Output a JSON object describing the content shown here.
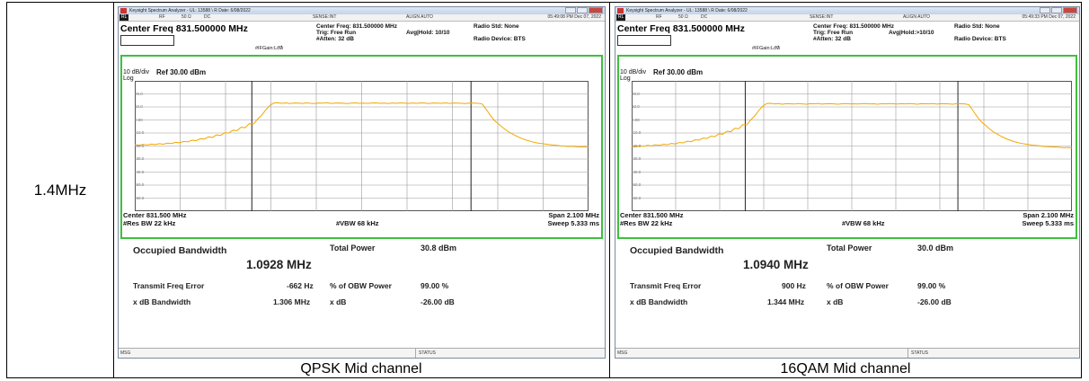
{
  "row_label": "1.4MHz",
  "panels": [
    {
      "caption": "QPSK Mid channel",
      "title": "Keysight Spectrum Analyzer - UL: 13588 \\ R Date: 6/08/2022",
      "strip": {
        "rl": "RL",
        "rf": "RF",
        "ohm": "50 Ω",
        "dc": "DC",
        "sense": "SENSE:INT",
        "align": "ALIGN AUTO",
        "time": "05:49:08 PM Dec 07, 2022"
      },
      "center_freq_main": "Center Freq 831.500000 MHz",
      "mid_lines": [
        "Center Freq: 831.500000 MHz",
        "Trig: Free Run",
        "#Atten: 32 dB"
      ],
      "avg_hold": "Avg|Hold: 10/10",
      "gain": "#IFGain:Low",
      "radio_std": "Radio Std: None",
      "radio_device": "Radio Device: BTS",
      "scale": [
        "10 dB/div",
        "Log"
      ],
      "ref_level": "Ref 30.00 dBm",
      "yticks": [
        "20.0",
        "10.0",
        "0.00",
        "-10.0",
        "-20.0",
        "-30.0",
        "-40.0",
        "-50.0",
        "-60.0"
      ],
      "center_footer": "Center 831.500 MHz",
      "res_bw": "#Res BW  22 kHz",
      "vbw": "#VBW  68 kHz",
      "span": "Span 2.100 MHz",
      "sweep": "Sweep  5.333 ms",
      "meas": {
        "occ_label": "Occupied Bandwidth",
        "obw_value": "1.0928 MHz",
        "total_power_label": "Total Power",
        "total_power_value": "30.8 dBm",
        "tfe_label": "Transmit Freq Error",
        "tfe_value": "-662 Hz",
        "pobw_label": "% of OBW Power",
        "pobw_value": "99.00 %",
        "xdb_bw_label": "x dB Bandwidth",
        "xdb_bw_value": "1.306 MHz",
        "xdb_label": "x dB",
        "xdb_value": "-26.00 dB"
      },
      "status_msg": "MSG",
      "status_label": "STATUS",
      "chart_data": {
        "type": "line",
        "ylabel": "",
        "ylim": [
          -70,
          30
        ],
        "x_span_mhz": [
          830.45,
          832.55
        ],
        "trace_color": "#f0a800",
        "trace_dbm": [
          -19,
          -19.5,
          -18.8,
          -19.2,
          -18.5,
          -18.9,
          -18.2,
          -18.6,
          -17.8,
          -18.1,
          -17.2,
          -17.5,
          -16.5,
          -16.8,
          -15.5,
          -15.9,
          -14.4,
          -14.7,
          -13.0,
          -13.4,
          -11.5,
          -11.9,
          -9.8,
          -10.0,
          -7.9,
          -8.2,
          -5.6,
          -5.9,
          -2.9,
          -3.2,
          0.5,
          3.5,
          7.5,
          11.0,
          13.0,
          13.2,
          12.8,
          13.1,
          12.6,
          13.0,
          12.9,
          12.7,
          13.1,
          12.8,
          12.6,
          13.0,
          12.9,
          13.2,
          12.7,
          12.9,
          13.0,
          12.8,
          12.6,
          12.9,
          13.1,
          12.8,
          12.9,
          12.7,
          13.0,
          13.1,
          12.8,
          12.9,
          12.6,
          13.0,
          12.8,
          13.1,
          12.9,
          12.7,
          13.0,
          12.8,
          13.1,
          12.9,
          12.6,
          13.0,
          12.9,
          12.8,
          13.1,
          12.7,
          13.0,
          12.9,
          12.8,
          12.6,
          13.0,
          12.9,
          12.8,
          12.2,
          8.0,
          3.5,
          -0.5,
          -3.0,
          -5.8,
          -8.2,
          -10.1,
          -11.8,
          -13.3,
          -14.6,
          -15.7,
          -16.6,
          -17.3,
          -17.9,
          -18.3,
          -18.8,
          -19.1,
          -19.4,
          -19.8,
          -20.0,
          -20.3,
          -20.2,
          -20.5,
          -20.8,
          -20.6,
          -21.0
        ]
      }
    },
    {
      "caption": "16QAM Mid channel",
      "title": "Keysight Spectrum Analyzer - UL: 13588 \\ R Date: 6/08/2022",
      "strip": {
        "rl": "RL",
        "rf": "RF",
        "ohm": "50 Ω",
        "dc": "DC",
        "sense": "SENSE:INT",
        "align": "ALIGN AUTO",
        "time": "05:49:33 PM Dec 07, 2022"
      },
      "center_freq_main": "Center Freq 831.500000 MHz",
      "mid_lines": [
        "Center Freq: 831.500000 MHz",
        "Trig: Free Run",
        "#Atten: 32 dB"
      ],
      "avg_hold": "Avg|Hold:>10/10",
      "gain": "#IFGain:Low",
      "radio_std": "Radio Std: None",
      "radio_device": "Radio Device: BTS",
      "scale": [
        "10 dB/div",
        "Log"
      ],
      "ref_level": "Ref 30.00 dBm",
      "yticks": [
        "20.0",
        "10.0",
        "0.00",
        "-10.0",
        "-20.0",
        "-30.0",
        "-40.0",
        "-50.0",
        "-60.0"
      ],
      "center_footer": "Center 831.500 MHz",
      "res_bw": "#Res BW  22 kHz",
      "vbw": "#VBW  68 kHz",
      "span": "Span 2.100 MHz",
      "sweep": "Sweep  5.333 ms",
      "meas": {
        "occ_label": "Occupied Bandwidth",
        "obw_value": "1.0940 MHz",
        "total_power_label": "Total Power",
        "total_power_value": "30.0 dBm",
        "tfe_label": "Transmit Freq Error",
        "tfe_value": "900 Hz",
        "pobw_label": "% of OBW Power",
        "pobw_value": "99.00 %",
        "xdb_bw_label": "x dB Bandwidth",
        "xdb_bw_value": "1.344 MHz",
        "xdb_label": "x dB",
        "xdb_value": "-26.00 dB"
      },
      "status_msg": "MSG",
      "status_label": "STATUS",
      "chart_data": {
        "type": "line",
        "ylabel": "",
        "ylim": [
          -70,
          30
        ],
        "x_span_mhz": [
          830.45,
          832.55
        ],
        "trace_color": "#f0a800",
        "trace_dbm": [
          -20,
          -20.4,
          -19.8,
          -20.2,
          -19.5,
          -19.9,
          -19.1,
          -19.5,
          -18.7,
          -19.0,
          -18.0,
          -18.4,
          -17.3,
          -17.6,
          -16.3,
          -16.7,
          -15.2,
          -15.5,
          -13.9,
          -14.2,
          -12.4,
          -12.8,
          -10.6,
          -10.9,
          -8.7,
          -9.0,
          -6.4,
          -6.7,
          -3.6,
          -3.9,
          0.0,
          3.0,
          7.0,
          10.5,
          12.5,
          12.8,
          12.3,
          12.6,
          12.1,
          12.5,
          12.4,
          12.2,
          12.6,
          12.3,
          12.1,
          12.5,
          12.4,
          12.7,
          12.2,
          12.4,
          12.5,
          12.3,
          12.1,
          12.4,
          12.6,
          12.3,
          12.4,
          12.2,
          12.5,
          12.6,
          12.3,
          12.4,
          12.1,
          12.5,
          12.3,
          12.6,
          12.4,
          12.2,
          12.5,
          12.3,
          12.6,
          12.4,
          12.1,
          12.5,
          12.4,
          12.3,
          12.6,
          12.2,
          12.5,
          12.4,
          12.3,
          12.1,
          12.5,
          12.4,
          12.3,
          11.7,
          7.5,
          3.0,
          -1.0,
          -3.5,
          -6.3,
          -8.7,
          -10.6,
          -12.3,
          -13.8,
          -15.1,
          -16.2,
          -17.1,
          -17.8,
          -18.4,
          -18.8,
          -19.3,
          -19.6,
          -19.9,
          -20.3,
          -20.5,
          -20.8,
          -20.7,
          -21.0,
          -21.3,
          -21.1,
          -21.5
        ]
      }
    }
  ]
}
